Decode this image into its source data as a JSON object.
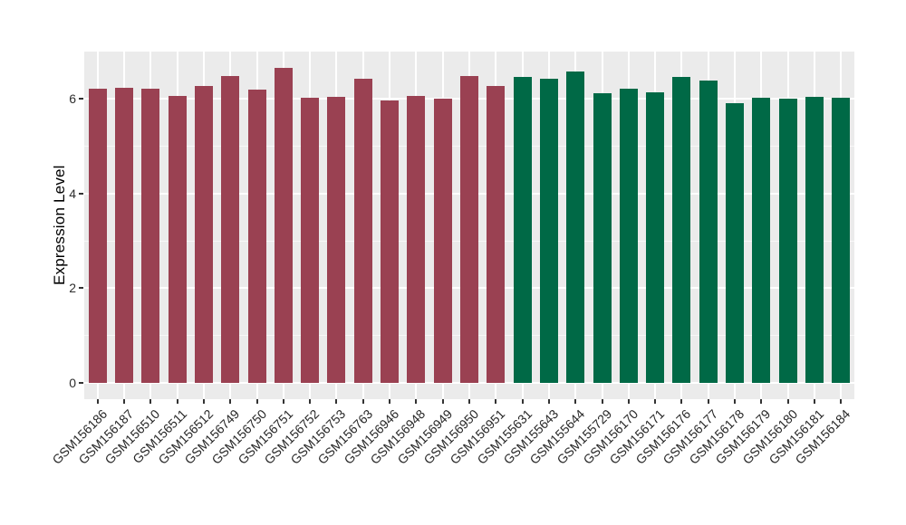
{
  "chart_data": {
    "type": "bar",
    "title": "",
    "xlabel": "",
    "ylabel": "Expression Level",
    "ylim": [
      0,
      7
    ],
    "y_major_ticks": [
      0,
      2,
      4,
      6
    ],
    "y_minor_ticks": [
      1,
      3,
      5
    ],
    "grid": "on",
    "legend": "none",
    "panel_background": "#EBEBEB",
    "gridline_color": "#FFFFFF",
    "palette": {
      "maroon": "#9A4152",
      "green": "#006946"
    },
    "bars": [
      {
        "label": "GSM156186",
        "value": 6.22,
        "group": "maroon"
      },
      {
        "label": "GSM156187",
        "value": 6.23,
        "group": "maroon"
      },
      {
        "label": "GSM156510",
        "value": 6.22,
        "group": "maroon"
      },
      {
        "label": "GSM156511",
        "value": 6.07,
        "group": "maroon"
      },
      {
        "label": "GSM156512",
        "value": 6.28,
        "group": "maroon"
      },
      {
        "label": "GSM156749",
        "value": 6.49,
        "group": "maroon"
      },
      {
        "label": "GSM156750",
        "value": 6.2,
        "group": "maroon"
      },
      {
        "label": "GSM156751",
        "value": 6.66,
        "group": "maroon"
      },
      {
        "label": "GSM156752",
        "value": 6.03,
        "group": "maroon"
      },
      {
        "label": "GSM156753",
        "value": 6.05,
        "group": "maroon"
      },
      {
        "label": "GSM156763",
        "value": 6.43,
        "group": "maroon"
      },
      {
        "label": "GSM156946",
        "value": 5.97,
        "group": "maroon"
      },
      {
        "label": "GSM156948",
        "value": 6.07,
        "group": "maroon"
      },
      {
        "label": "GSM156949",
        "value": 6.0,
        "group": "maroon"
      },
      {
        "label": "GSM156950",
        "value": 6.49,
        "group": "maroon"
      },
      {
        "label": "GSM156951",
        "value": 6.28,
        "group": "maroon"
      },
      {
        "label": "GSM155631",
        "value": 6.47,
        "group": "green"
      },
      {
        "label": "GSM155643",
        "value": 6.43,
        "group": "green"
      },
      {
        "label": "GSM155644",
        "value": 6.58,
        "group": "green"
      },
      {
        "label": "GSM155729",
        "value": 6.11,
        "group": "green"
      },
      {
        "label": "GSM156170",
        "value": 6.22,
        "group": "green"
      },
      {
        "label": "GSM156171",
        "value": 6.13,
        "group": "green"
      },
      {
        "label": "GSM156176",
        "value": 6.47,
        "group": "green"
      },
      {
        "label": "GSM156177",
        "value": 6.38,
        "group": "green"
      },
      {
        "label": "GSM156178",
        "value": 5.9,
        "group": "green"
      },
      {
        "label": "GSM156179",
        "value": 6.03,
        "group": "green"
      },
      {
        "label": "GSM156180",
        "value": 6.0,
        "group": "green"
      },
      {
        "label": "GSM156181",
        "value": 6.05,
        "group": "green"
      },
      {
        "label": "GSM156184",
        "value": 6.02,
        "group": "green"
      }
    ]
  }
}
